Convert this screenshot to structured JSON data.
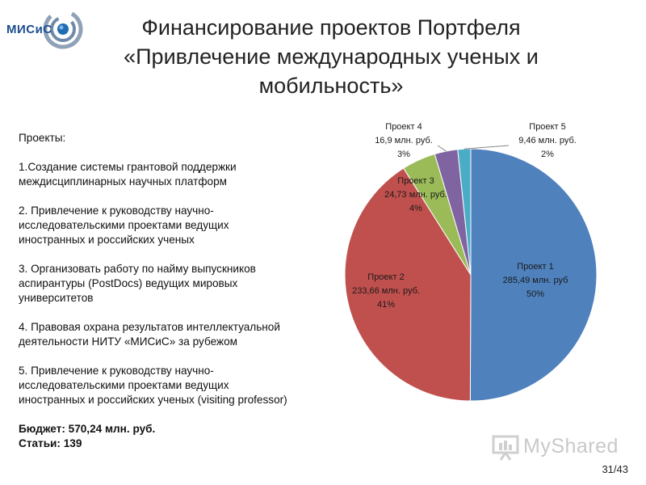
{
  "logo": {
    "text": "МИСиС"
  },
  "title": {
    "line1": "Финансирование проектов Портфеля",
    "line2": "«Привлечение международных ученых и",
    "line3": "мобильность»"
  },
  "projects_block": {
    "heading": "Проекты:",
    "items": [
      {
        "line1": "1.Создание системы грантовой поддержки",
        "line2": "междисциплинарных научных платформ"
      },
      {
        "line1": "2. Привлечение к руководству научно-",
        "line2": "исследовательскими проектами ведущих",
        "line3": "иностранных и российских ученых"
      },
      {
        "line1": "3. Организовать работу по найму выпускников",
        "line2": "аспирантуры (PostDocs) ведущих мировых",
        "line3": "университетов"
      },
      {
        "line1": "4. Правовая охрана результатов интеллектуальной",
        "line2": "деятельности НИТУ «МИСиС» за рубежом"
      },
      {
        "line1": "5. Привлечение к руководству научно-",
        "line2": "исследовательскими проектами ведущих",
        "line3": "иностранных и российских ученых (visiting professor)"
      }
    ],
    "budget": "Бюджет:  570,24 млн. руб.",
    "articles": "Статьи: 139"
  },
  "chart_data": {
    "type": "pie",
    "start_angle_deg": 0,
    "direction": "clockwise",
    "slices": [
      {
        "name": "Проект 1",
        "amount": "285,49 млн. руб",
        "value": 285.49,
        "percent": "50%",
        "color": "#4f81bd"
      },
      {
        "name": "Проект 2",
        "amount": "233,66 млн. руб.",
        "value": 233.66,
        "percent": "41%",
        "color": "#c0504d"
      },
      {
        "name": "Проект 3",
        "amount": "24,73 млн. руб.",
        "value": 24.73,
        "percent": "4%",
        "color": "#9bbb59"
      },
      {
        "name": "Проект 4",
        "amount": "16,9 млн. руб.",
        "value": 16.9,
        "percent": "3%",
        "color": "#8064a2"
      },
      {
        "name": "Проект 5",
        "amount": "9,46 млн. руб.",
        "value": 9.46,
        "percent": "2%",
        "color": "#4bacc6"
      }
    ]
  },
  "watermark": {
    "text": "MyShared"
  },
  "page_number": "31/43"
}
